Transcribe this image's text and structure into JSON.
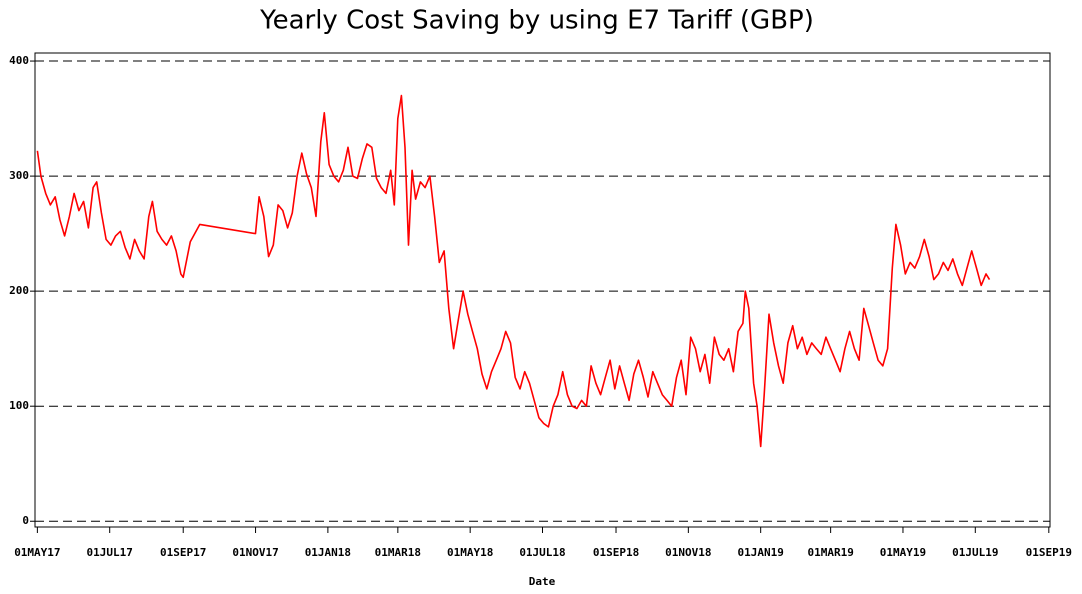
{
  "chart_data": {
    "type": "line",
    "title": "Yearly Cost Saving by using E7 Tariff (GBP)",
    "x_label": "Date",
    "xlim": [
      "2017-04-29",
      "2019-09-02"
    ],
    "xticks": [
      {
        "value": "2017-05-01",
        "label": "01MAY17"
      },
      {
        "value": "2017-07-01",
        "label": "01JUL17"
      },
      {
        "value": "2017-09-01",
        "label": "01SEP17"
      },
      {
        "value": "2017-11-01",
        "label": "01NOV17"
      },
      {
        "value": "2018-01-01",
        "label": "01JAN18"
      },
      {
        "value": "2018-03-01",
        "label": "01MAR18"
      },
      {
        "value": "2018-05-01",
        "label": "01MAY18"
      },
      {
        "value": "2018-07-01",
        "label": "01JUL18"
      },
      {
        "value": "2018-09-01",
        "label": "01SEP18"
      },
      {
        "value": "2018-11-01",
        "label": "01NOV18"
      },
      {
        "value": "2019-01-01",
        "label": "01JAN19"
      },
      {
        "value": "2019-03-01",
        "label": "01MAR19"
      },
      {
        "value": "2019-05-01",
        "label": "01MAY19"
      },
      {
        "value": "2019-07-01",
        "label": "01JUL19"
      },
      {
        "value": "2019-09-01",
        "label": "01SEP19"
      }
    ],
    "ylim": [
      -5,
      407
    ],
    "yticks": [
      0,
      100,
      200,
      300,
      400
    ],
    "grid": true,
    "color": "#ff0000",
    "x": [
      "2017-05-01",
      "2017-05-04",
      "2017-05-08",
      "2017-05-12",
      "2017-05-16",
      "2017-05-20",
      "2017-05-24",
      "2017-05-28",
      "2017-06-01",
      "2017-06-05",
      "2017-06-09",
      "2017-06-13",
      "2017-06-17",
      "2017-06-20",
      "2017-06-24",
      "2017-06-28",
      "2017-07-02",
      "2017-07-06",
      "2017-07-10",
      "2017-07-14",
      "2017-07-18",
      "2017-07-22",
      "2017-07-26",
      "2017-07-30",
      "2017-08-03",
      "2017-08-06",
      "2017-08-10",
      "2017-08-14",
      "2017-08-18",
      "2017-08-22",
      "2017-08-26",
      "2017-08-30",
      "2017-09-01",
      "2017-09-07",
      "2017-09-15",
      "2017-11-01",
      "2017-11-04",
      "2017-11-08",
      "2017-11-12",
      "2017-11-16",
      "2017-11-20",
      "2017-11-24",
      "2017-11-28",
      "2017-12-02",
      "2017-12-06",
      "2017-12-10",
      "2017-12-14",
      "2017-12-18",
      "2017-12-22",
      "2017-12-26",
      "2017-12-29",
      "2018-01-02",
      "2018-01-06",
      "2018-01-10",
      "2018-01-14",
      "2018-01-18",
      "2018-01-22",
      "2018-01-26",
      "2018-01-30",
      "2018-02-03",
      "2018-02-07",
      "2018-02-11",
      "2018-02-15",
      "2018-02-19",
      "2018-02-23",
      "2018-02-26",
      "2018-03-01",
      "2018-03-04",
      "2018-03-07",
      "2018-03-10",
      "2018-03-13",
      "2018-03-16",
      "2018-03-20",
      "2018-03-24",
      "2018-03-28",
      "2018-04-01",
      "2018-04-05",
      "2018-04-09",
      "2018-04-13",
      "2018-04-17",
      "2018-04-21",
      "2018-04-25",
      "2018-04-29",
      "2018-05-03",
      "2018-05-07",
      "2018-05-11",
      "2018-05-15",
      "2018-05-19",
      "2018-05-23",
      "2018-05-27",
      "2018-05-31",
      "2018-06-04",
      "2018-06-08",
      "2018-06-12",
      "2018-06-16",
      "2018-06-20",
      "2018-06-24",
      "2018-06-28",
      "2018-07-02",
      "2018-07-06",
      "2018-07-10",
      "2018-07-14",
      "2018-07-18",
      "2018-07-22",
      "2018-07-26",
      "2018-07-30",
      "2018-08-03",
      "2018-08-07",
      "2018-08-11",
      "2018-08-15",
      "2018-08-19",
      "2018-08-23",
      "2018-08-27",
      "2018-08-31",
      "2018-09-04",
      "2018-09-08",
      "2018-09-12",
      "2018-09-16",
      "2018-09-20",
      "2018-09-24",
      "2018-09-28",
      "2018-10-02",
      "2018-10-06",
      "2018-10-10",
      "2018-10-14",
      "2018-10-18",
      "2018-10-22",
      "2018-10-26",
      "2018-10-30",
      "2018-11-03",
      "2018-11-07",
      "2018-11-11",
      "2018-11-15",
      "2018-11-19",
      "2018-11-23",
      "2018-11-27",
      "2018-12-01",
      "2018-12-05",
      "2018-12-09",
      "2018-12-13",
      "2018-12-17",
      "2018-12-19",
      "2018-12-22",
      "2018-12-26",
      "2018-12-29",
      "2019-01-01",
      "2019-01-04",
      "2019-01-08",
      "2019-01-12",
      "2019-01-16",
      "2019-01-20",
      "2019-01-24",
      "2019-01-28",
      "2019-02-01",
      "2019-02-05",
      "2019-02-09",
      "2019-02-13",
      "2019-02-17",
      "2019-02-21",
      "2019-02-25",
      "2019-03-01",
      "2019-03-05",
      "2019-03-09",
      "2019-03-13",
      "2019-03-17",
      "2019-03-21",
      "2019-03-25",
      "2019-03-29",
      "2019-04-02",
      "2019-04-06",
      "2019-04-10",
      "2019-04-14",
      "2019-04-18",
      "2019-04-22",
      "2019-04-25",
      "2019-04-29",
      "2019-05-03",
      "2019-05-07",
      "2019-05-11",
      "2019-05-15",
      "2019-05-19",
      "2019-05-23",
      "2019-05-27",
      "2019-05-31",
      "2019-06-04",
      "2019-06-08",
      "2019-06-12",
      "2019-06-16",
      "2019-06-20",
      "2019-06-24",
      "2019-06-28",
      "2019-07-02",
      "2019-07-06",
      "2019-07-10",
      "2019-07-13"
    ],
    "values": [
      322,
      300,
      285,
      275,
      282,
      262,
      248,
      265,
      285,
      270,
      278,
      255,
      290,
      295,
      268,
      245,
      240,
      248,
      252,
      238,
      228,
      245,
      235,
      228,
      265,
      278,
      252,
      245,
      240,
      248,
      235,
      215,
      212,
      243,
      258,
      250,
      282,
      265,
      230,
      240,
      275,
      270,
      255,
      268,
      300,
      320,
      302,
      290,
      265,
      330,
      355,
      310,
      300,
      295,
      305,
      325,
      300,
      298,
      315,
      328,
      325,
      298,
      290,
      285,
      305,
      275,
      350,
      370,
      325,
      240,
      305,
      280,
      295,
      290,
      300,
      265,
      225,
      235,
      185,
      150,
      175,
      200,
      180,
      165,
      150,
      128,
      115,
      130,
      140,
      150,
      165,
      155,
      125,
      115,
      130,
      120,
      105,
      90,
      85,
      82,
      100,
      110,
      130,
      110,
      100,
      98,
      105,
      100,
      135,
      120,
      110,
      125,
      140,
      115,
      135,
      120,
      105,
      128,
      140,
      125,
      108,
      130,
      120,
      110,
      105,
      100,
      125,
      140,
      110,
      160,
      150,
      130,
      145,
      120,
      160,
      145,
      140,
      150,
      130,
      165,
      172,
      200,
      185,
      120,
      100,
      65,
      110,
      180,
      155,
      135,
      120,
      155,
      170,
      150,
      160,
      145,
      155,
      150,
      145,
      160,
      150,
      140,
      130,
      150,
      165,
      150,
      140,
      185,
      170,
      155,
      140,
      135,
      150,
      220,
      258,
      240,
      215,
      225,
      220,
      230,
      245,
      230,
      210,
      215,
      225,
      218,
      228,
      215,
      205,
      220,
      235,
      220,
      205,
      215,
      210
    ]
  }
}
